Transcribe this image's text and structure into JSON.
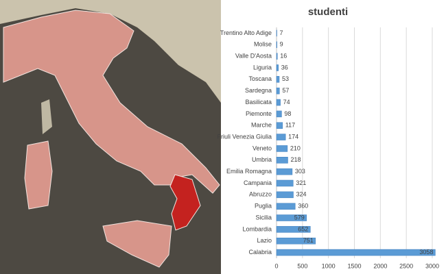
{
  "chart_data": {
    "type": "bar",
    "orientation": "horizontal",
    "title": "studenti",
    "categories": [
      "Trentino Alto Adige",
      "Molise",
      "Valle D'Aosta",
      "Liguria",
      "Toscana",
      "Sardegna",
      "Basilicata",
      "Piemonte",
      "Marche",
      "Friuli Venezia Giulia",
      "Veneto",
      "Umbria",
      "Emilia Romagna",
      "Campania",
      "Abruzzo",
      "Puglia",
      "Sicilia",
      "Lombardia",
      "Lazio",
      "Calabria"
    ],
    "values": [
      7,
      9,
      16,
      36,
      53,
      57,
      74,
      98,
      117,
      174,
      210,
      218,
      303,
      321,
      324,
      360,
      579,
      652,
      751,
      3058
    ],
    "color": "#5b9bd5",
    "xlim": [
      0,
      3000
    ],
    "xticks": [
      0,
      500,
      1000,
      1500,
      2000,
      2500,
      3000
    ],
    "grid": true
  }
}
